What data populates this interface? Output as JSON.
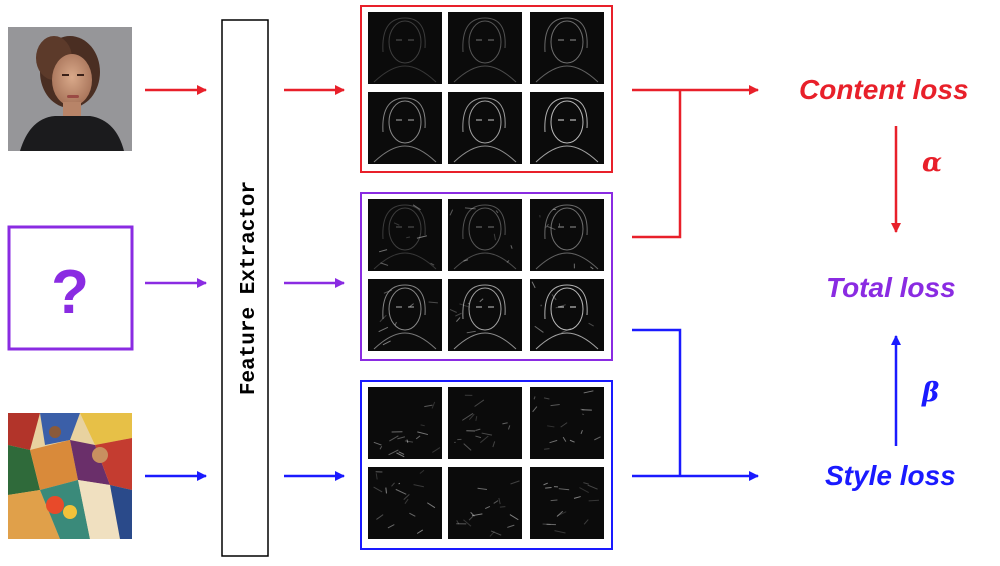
{
  "colors": {
    "content": "#e8202a",
    "generated": "#8a2be2",
    "style": "#1a1aff",
    "extractor_border": "#000000"
  },
  "inputs": {
    "content_image": "portrait-photo",
    "generated_image_symbol": "?",
    "style_image": "cubist-painting"
  },
  "feature_extractor": {
    "label": "Feature Extractor"
  },
  "feature_maps": {
    "content_set": "content-feature-maps",
    "generated_set": "generated-feature-maps",
    "style_set": "style-feature-maps"
  },
  "losses": {
    "content": "Content loss",
    "total": "Total loss",
    "style": "Style loss",
    "alpha": "α",
    "beta": "β"
  }
}
